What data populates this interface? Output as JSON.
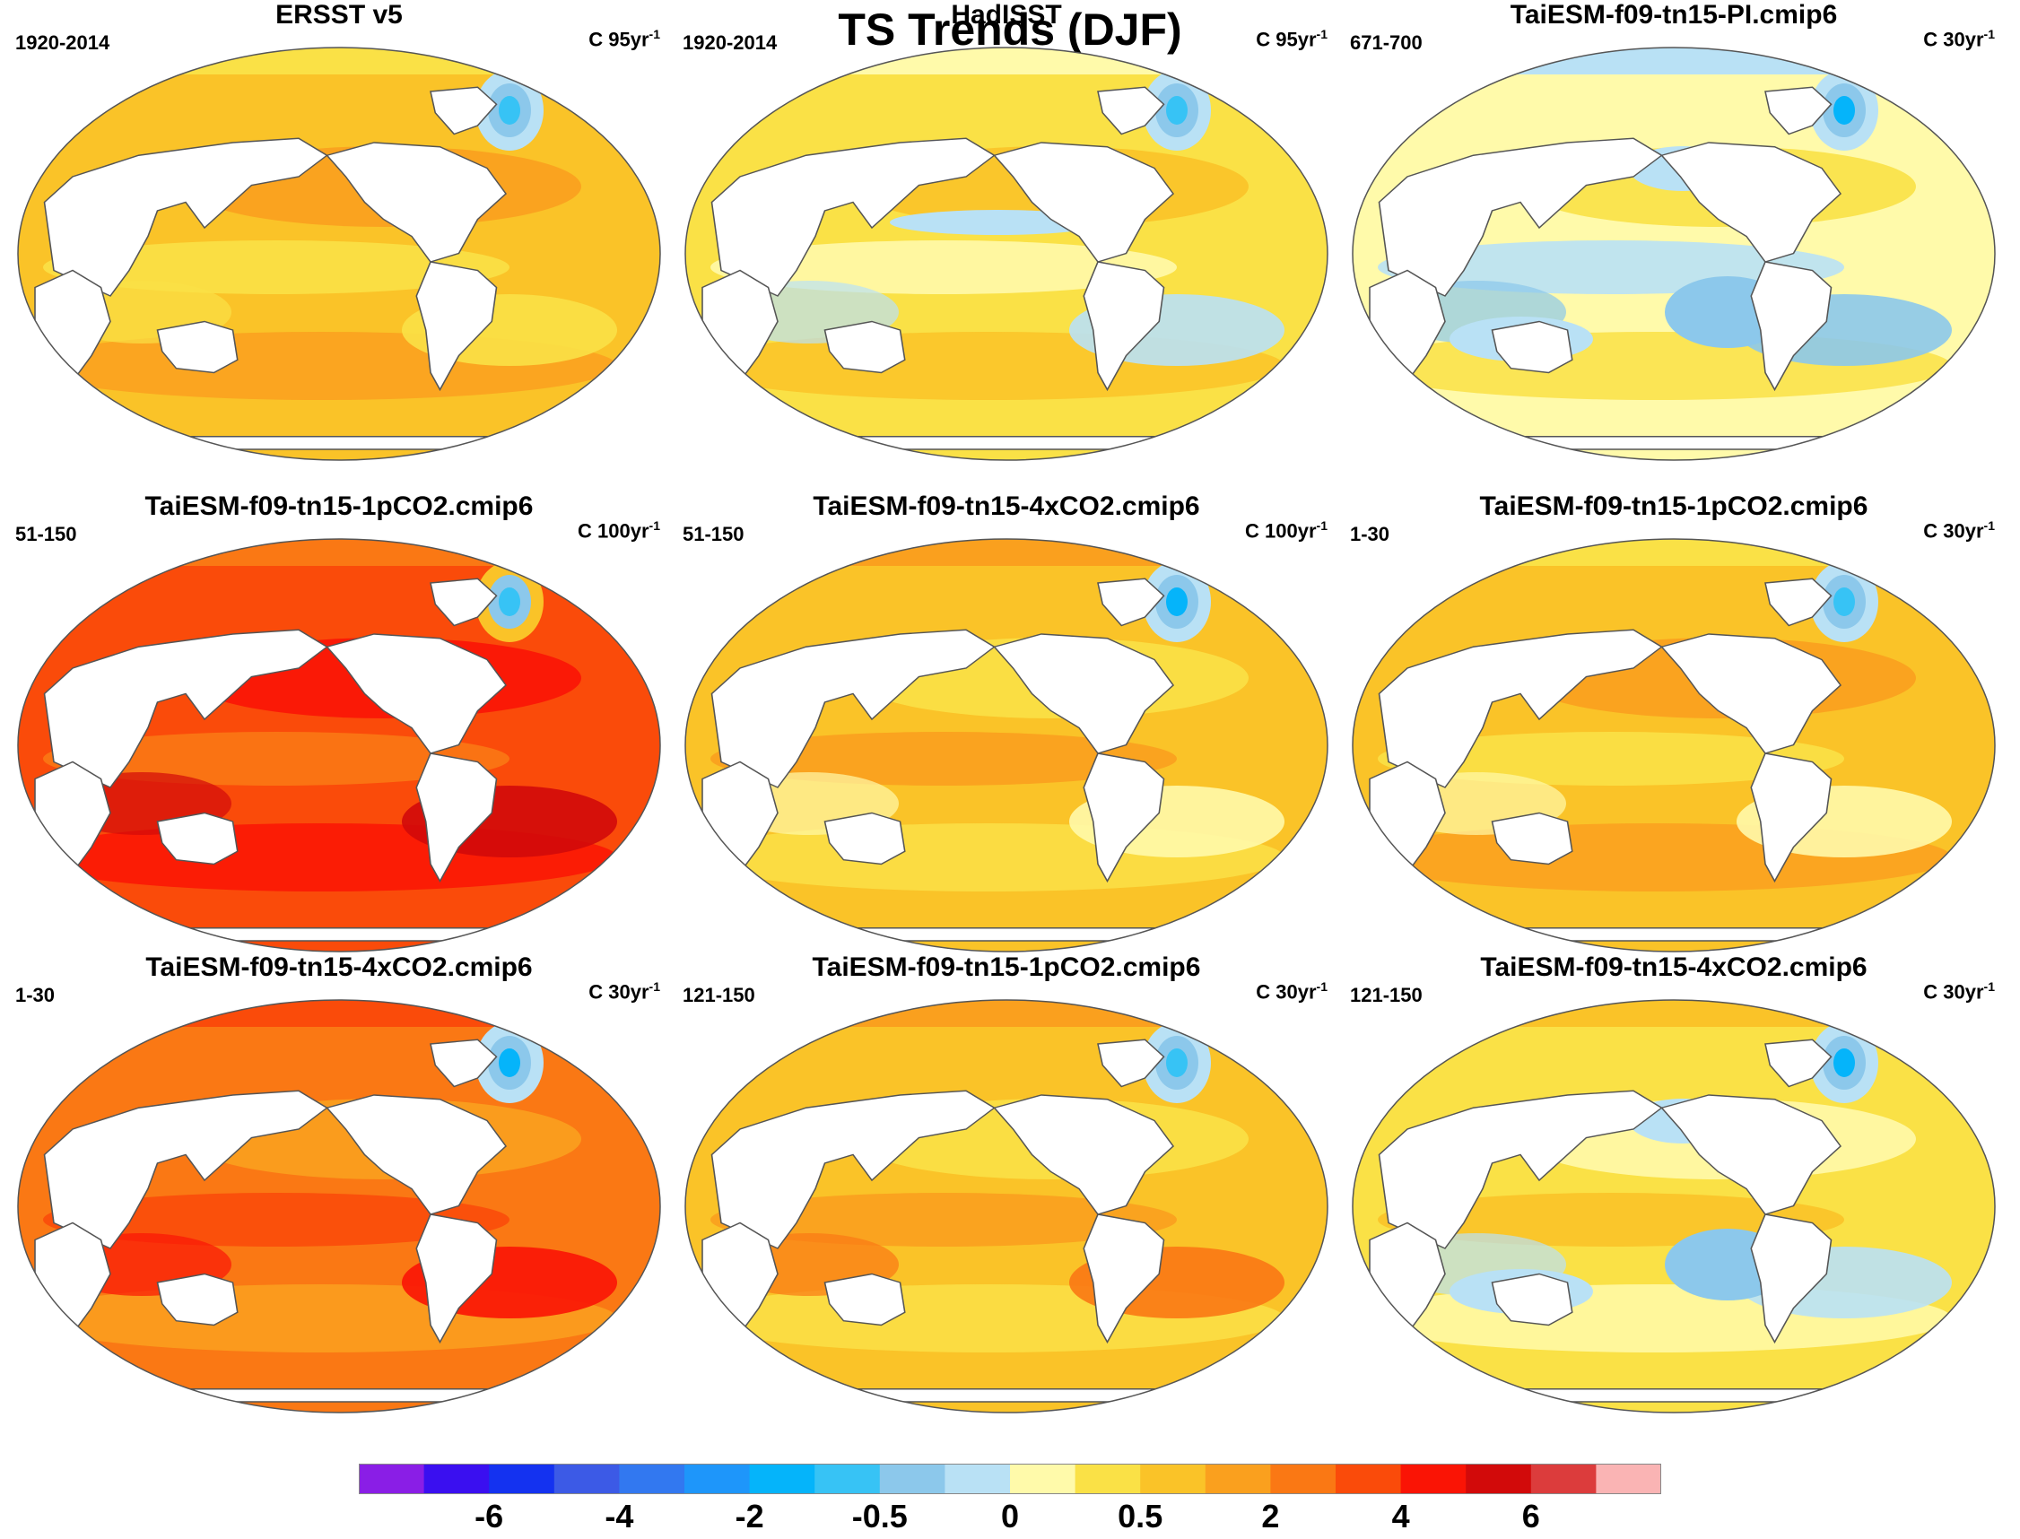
{
  "figure": {
    "title": "TS Trends (DJF)",
    "units_prefix": "C",
    "units_suffix": "yr",
    "units_exponent": "-1"
  },
  "panels": [
    {
      "title": "ERSST v5",
      "period": "1920-2014",
      "trend_length": "95",
      "pattern": "obs1"
    },
    {
      "title": "HadISST",
      "period": "1920-2014",
      "trend_length": "95",
      "pattern": "obs2"
    },
    {
      "title": "TaiESM-f09-tn15-PI.cmip6",
      "period": "671-700",
      "trend_length": "30",
      "pattern": "pi"
    },
    {
      "title": "TaiESM-f09-tn15-1pCO2.cmip6",
      "period": "51-150",
      "trend_length": "100",
      "pattern": "strong"
    },
    {
      "title": "TaiESM-f09-tn15-4xCO2.cmip6",
      "period": "51-150",
      "trend_length": "100",
      "pattern": "mid"
    },
    {
      "title": "TaiESM-f09-tn15-1pCO2.cmip6",
      "period": "1-30",
      "trend_length": "30",
      "pattern": "mild"
    },
    {
      "title": "TaiESM-f09-tn15-4xCO2.cmip6",
      "period": "1-30",
      "trend_length": "30",
      "pattern": "strong2"
    },
    {
      "title": "TaiESM-f09-tn15-1pCO2.cmip6",
      "period": "121-150",
      "trend_length": "30",
      "pattern": "mid2"
    },
    {
      "title": "TaiESM-f09-tn15-4xCO2.cmip6",
      "period": "121-150",
      "trend_length": "30",
      "pattern": "pi2"
    }
  ],
  "colorbar": {
    "colors": [
      "#8a1ee6",
      "#3a0ff0",
      "#1432f0",
      "#3c5ae6",
      "#3278f0",
      "#1e96fa",
      "#05b4fa",
      "#37c3f5",
      "#8cc8eb",
      "#b9e1f5",
      "#fffaaa",
      "#fae146",
      "#fac328",
      "#faa01e",
      "#fa7814",
      "#fa4b0a",
      "#fa1405",
      "#d20a0a",
      "#dc3c3c",
      "#fab4b4"
    ],
    "labels": [
      {
        "text": "-6",
        "boundary": 2
      },
      {
        "text": "-4",
        "boundary": 4
      },
      {
        "text": "-2",
        "boundary": 6
      },
      {
        "text": "-0.5",
        "boundary": 8
      },
      {
        "text": "0",
        "boundary": 10
      },
      {
        "text": "0.5",
        "boundary": 12
      },
      {
        "text": "2",
        "boundary": 14
      },
      {
        "text": "4",
        "boundary": 16
      },
      {
        "text": "6",
        "boundary": 18
      }
    ]
  }
}
